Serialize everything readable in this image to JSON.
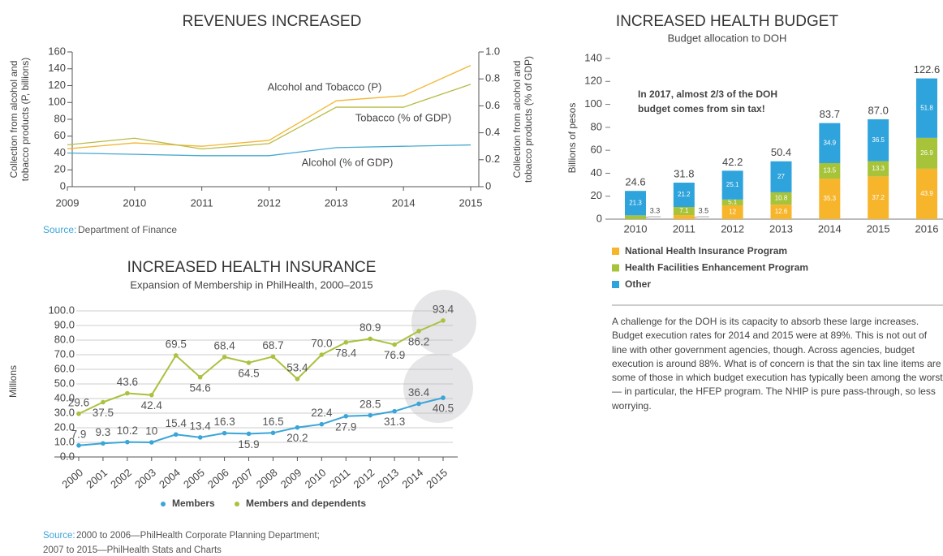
{
  "chart_data": [
    {
      "type": "line",
      "title": "REVENUES INCREASED",
      "x": [
        2009,
        2010,
        2011,
        2012,
        2013,
        2014,
        2015
      ],
      "xlim": [
        2009,
        2015
      ],
      "xticks": [
        2009,
        2010,
        2011,
        2012,
        2013,
        2014,
        2015
      ],
      "ylabel": [
        "Collection from alcohol and",
        "tobacco products (P, billions)"
      ],
      "y2label": [
        "Collection from alcohol and",
        "tobacco products (% of GDP)"
      ],
      "ylim": [
        0,
        160
      ],
      "yticks": [
        0,
        20,
        40,
        60,
        80,
        100,
        120,
        140,
        160
      ],
      "y2lim": [
        0,
        1
      ],
      "y2ticks": [
        0,
        0.2,
        0.4,
        0.6,
        0.8,
        {
          "value": 1,
          "label": "1.0"
        }
      ],
      "series": [
        {
          "name": "Alcohol and Tobacco (P)",
          "color": "#f2b632",
          "values": [
            45,
            52,
            48,
            55,
            102,
            108,
            144
          ]
        },
        {
          "name": "Tobacco (% of GDP)",
          "color": "#b8bb45",
          "axis": "y2",
          "values": [
            0.31,
            0.36,
            0.28,
            0.32,
            0.59,
            0.59,
            0.76
          ]
        },
        {
          "name": "Alcohol (% of GDP)",
          "color": "#46a9cf",
          "axis": "y2",
          "values": [
            0.25,
            0.24,
            0.23,
            0.23,
            0.29,
            0.3,
            0.31
          ]
        }
      ],
      "source": {
        "label": "Source:",
        "text": [
          "Department of Finance"
        ]
      }
    },
    {
      "type": "line",
      "title": "INCREASED HEALTH INSURANCE",
      "subtitle": "Expansion of Membership in PhilHealth, 2000–2015",
      "categories": [
        "2000",
        "2001",
        "2002",
        "2003",
        "2004",
        "2005",
        "2006",
        "2007",
        "2008",
        "2009",
        "2010",
        "2011",
        "2012",
        "2013",
        "2014",
        "2015"
      ],
      "ylabel": "Millions",
      "ylim": [
        0,
        100
      ],
      "yticks": [
        {
          "value": 0,
          "label": "0.0"
        },
        {
          "value": 10,
          "label": "10.0"
        },
        {
          "value": 20,
          "label": "20.0"
        },
        {
          "value": 30,
          "label": "30.0"
        },
        {
          "value": 40,
          "label": "40.0"
        },
        {
          "value": 50,
          "label": "50.0"
        },
        {
          "value": 60,
          "label": "60.0"
        },
        {
          "value": 70,
          "label": "70.0"
        },
        {
          "value": 80,
          "label": "80.0"
        },
        {
          "value": 90,
          "label": "90.0"
        },
        {
          "value": 100,
          "label": "100.0"
        }
      ],
      "grid": true,
      "legend": "bottom",
      "series": [
        {
          "name": "Members",
          "color": "#3ba5d8",
          "values": [
            7.9,
            9.3,
            10.2,
            10,
            15.4,
            13.4,
            16.3,
            15.9,
            16.5,
            20.2,
            22.4,
            27.9,
            28.5,
            31.3,
            36.4,
            40.5
          ],
          "value_labels": [
            "7.9",
            "9.3",
            "10.2",
            "10",
            "15.4",
            "13.4",
            "16.3",
            "15.9",
            "16.5",
            "20.2",
            "22.4",
            "27.9",
            "28.5",
            "31.3",
            "36.4",
            "40.5"
          ]
        },
        {
          "name": "Members and dependents",
          "color": "#a9c23f",
          "values": [
            29.6,
            37.5,
            43.6,
            42.4,
            69.5,
            54.6,
            68.4,
            64.5,
            68.7,
            53.4,
            70.0,
            78.4,
            80.9,
            76.9,
            86.2,
            93.4
          ],
          "value_labels": [
            "29.6",
            "37.5",
            "43.6",
            "42.4",
            "69.5",
            "54.6",
            "68.4",
            "64.5",
            "68.7",
            "53.4",
            "70.0",
            "78.4",
            "80.9",
            "76.9",
            "86.2",
            "93.4"
          ]
        }
      ],
      "source": {
        "label": "Source:",
        "text": [
          "2000 to 2006—PhilHealth Corporate Planning Department;",
          "2007 to 2015—PhilHealth Stats and Charts"
        ]
      }
    },
    {
      "type": "bar",
      "stacked": true,
      "title": "INCREASED HEALTH BUDGET",
      "subtitle": "Budget allocation to DOH",
      "categories": [
        "2010",
        "2011",
        "2012",
        "2013",
        "2014",
        "2015",
        "2016"
      ],
      "ylabel": "Billions of pesos",
      "ylim": [
        0,
        140
      ],
      "yticks": [
        0,
        20,
        40,
        60,
        80,
        100,
        120,
        140
      ],
      "annotation": [
        "In 2017, almost 2/3 of the DOH",
        "budget comes from sin tax!"
      ],
      "legend": "bottom-left",
      "series": [
        {
          "name": "National Health Insurance Program",
          "color": "#f7b52c",
          "values": [
            null,
            3.5,
            12,
            12.6,
            35.3,
            37.2,
            43.9
          ]
        },
        {
          "name": "Health Facilities Enhancement Program",
          "color": "#a6c339",
          "values": [
            3.3,
            7.1,
            5.1,
            10.8,
            13.5,
            13.3,
            26.9
          ]
        },
        {
          "name": "Other",
          "color": "#2fa3dc",
          "values": [
            21.3,
            21.2,
            25.1,
            27,
            34.9,
            36.5,
            51.8
          ]
        }
      ],
      "totals": [
        24.6,
        31.8,
        42.2,
        50.4,
        83.7,
        87.0,
        122.6
      ],
      "totals_labels": [
        "24.6",
        "31.8",
        "42.2",
        "50.4",
        "83.7",
        "87.0",
        "122.6"
      ]
    }
  ],
  "paragraph": "A challenge for the DOH is its capacity to absorb these large increases. Budget execution rates for 2014 and 2015 were at 89%. This is not out of line with other government agencies, though. Across agencies, budget execution is around 88%. What is of concern is that the sin tax line items are some of those in which budget execution has typically been among the worst — in particular, the HFEP program. The NHIP is pure pass-through, so less worrying."
}
